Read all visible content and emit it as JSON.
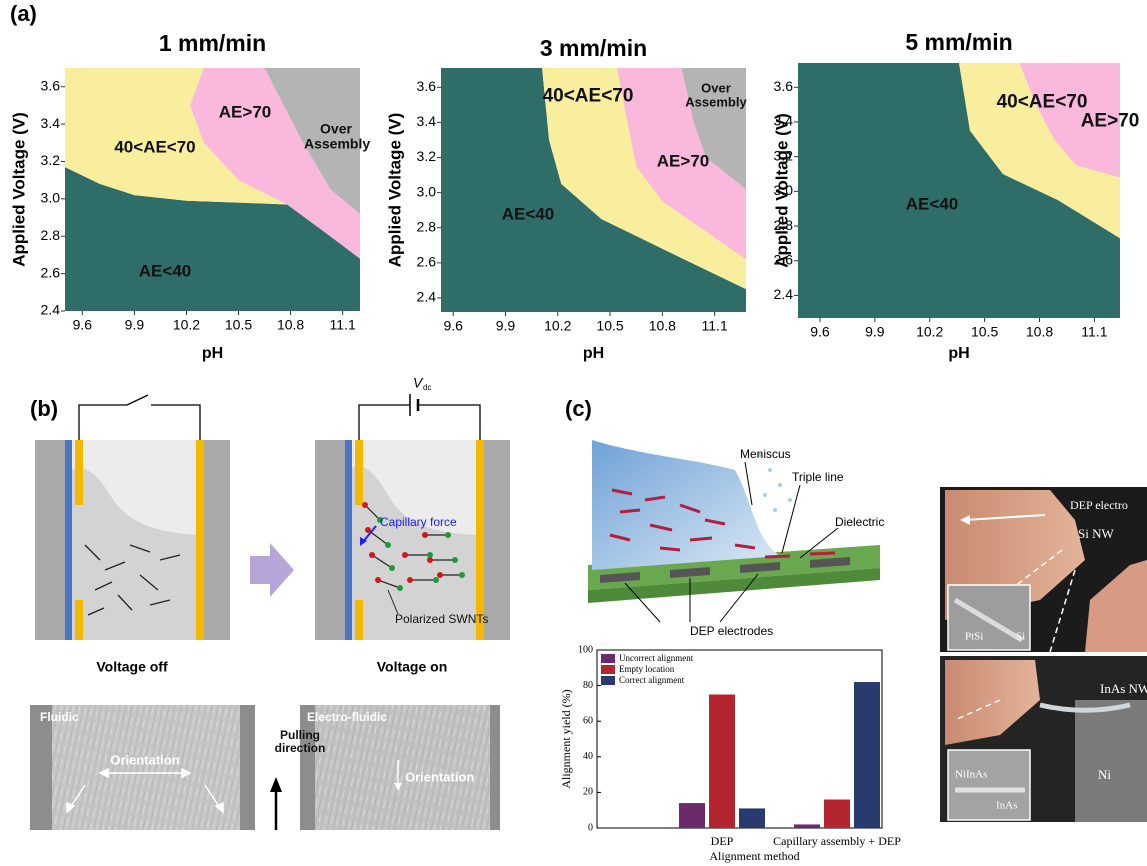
{
  "panel_labels": [
    "(a)",
    "(b)",
    "(c)"
  ],
  "chart_data": [
    {
      "type": "region",
      "title": "1 mm/min",
      "xlabel": "pH",
      "ylabel": "Applied Voltage (V)",
      "xlim": [
        9.5,
        11.2
      ],
      "ylim": [
        2.4,
        3.7
      ],
      "xticks": [
        9.6,
        9.9,
        10.2,
        10.5,
        10.8,
        11.1
      ],
      "yticks": [
        2.4,
        2.6,
        2.8,
        {
          "value": 3,
          "label": "3.0"
        },
        3.2,
        3.4,
        3.6
      ],
      "regions": [
        {
          "name": "AE<40",
          "color": "#2f6d69",
          "x": [
            9.5,
            9.5,
            9.7,
            9.9,
            10.2,
            10.5,
            10.78,
            11.0,
            11.2,
            11.2
          ],
          "y": [
            2.4,
            3.17,
            3.08,
            3.02,
            2.99,
            2.98,
            2.97,
            2.82,
            2.68,
            2.4
          ]
        },
        {
          "name": "40<AE<70",
          "color": "#f8ee9e",
          "x": [
            9.5,
            9.5,
            9.7,
            9.9,
            10.2,
            10.5,
            10.78,
            10.5,
            10.3,
            10.22,
            10.3
          ],
          "y": [
            3.7,
            3.17,
            3.08,
            3.02,
            2.99,
            2.98,
            2.97,
            3.1,
            3.3,
            3.5,
            3.7
          ]
        },
        {
          "name": "AE>70",
          "color": "#f9b8dc",
          "x": [
            10.78,
            10.5,
            10.3,
            10.22,
            10.3,
            10.65,
            10.86,
            11.03,
            11.2,
            11.2,
            11.0
          ],
          "y": [
            2.97,
            3.1,
            3.3,
            3.5,
            3.7,
            3.7,
            3.32,
            3.05,
            2.92,
            2.68,
            2.82
          ]
        },
        {
          "name": "Over Assembly",
          "color": "#b4b4b4",
          "x": [
            10.65,
            11.2,
            11.2,
            11.03,
            10.86
          ],
          "y": [
            3.7,
            3.7,
            2.92,
            3.05,
            3.32
          ]
        }
      ]
    },
    {
      "type": "region",
      "title": "3 mm/min",
      "xlabel": "pH",
      "ylabel": "Applied Voltage (V)",
      "xlim": [
        9.53,
        11.28
      ],
      "ylim": [
        2.32,
        3.71
      ],
      "xticks": [
        9.6,
        9.9,
        10.2,
        10.5,
        10.8,
        11.1
      ],
      "yticks": [
        2.4,
        2.6,
        2.8,
        {
          "value": 3,
          "label": "3.0"
        },
        3.2,
        3.4,
        3.6
      ],
      "regions": [
        {
          "name": "AE<40",
          "color": "#2f6d69",
          "x": [
            9.53,
            9.53,
            10.11,
            10.15,
            10.22,
            10.45,
            10.8,
            11.28,
            11.28
          ],
          "y": [
            2.32,
            3.71,
            3.71,
            3.3,
            3.05,
            2.85,
            2.68,
            2.45,
            2.32
          ]
        },
        {
          "name": "40<AE<70",
          "color": "#f8ee9e",
          "x": [
            10.11,
            10.15,
            10.22,
            10.45,
            10.8,
            11.28,
            11.28,
            10.8,
            10.65,
            10.6,
            10.54
          ],
          "y": [
            3.71,
            3.3,
            3.05,
            2.85,
            2.68,
            2.45,
            2.62,
            2.95,
            3.15,
            3.4,
            3.71
          ]
        },
        {
          "name": "AE>70",
          "color": "#f9b8dc",
          "x": [
            10.54,
            10.6,
            10.65,
            10.8,
            11.28,
            11.28,
            11.05,
            10.98,
            10.91
          ],
          "y": [
            3.71,
            3.4,
            3.15,
            2.95,
            2.62,
            3.02,
            3.2,
            3.4,
            3.71
          ]
        },
        {
          "name": "Over Assembly",
          "color": "#b4b4b4",
          "x": [
            10.91,
            11.28,
            11.28,
            11.05,
            10.98
          ],
          "y": [
            3.71,
            3.71,
            3.02,
            3.2,
            3.4
          ]
        }
      ]
    },
    {
      "type": "region",
      "title": "5 mm/min",
      "xlabel": "pH",
      "ylabel": "Applied Voltage (V)",
      "xlim": [
        9.48,
        11.24
      ],
      "ylim": [
        2.27,
        3.74
      ],
      "xticks": [
        9.6,
        9.9,
        10.2,
        10.5,
        10.8,
        11.1
      ],
      "yticks": [
        2.4,
        2.6,
        2.8,
        {
          "value": 3,
          "label": "3.0"
        },
        3.2,
        3.4,
        3.6
      ],
      "regions": [
        {
          "name": "AE<40",
          "color": "#2f6d69",
          "x": [
            9.48,
            9.48,
            10.36,
            10.42,
            10.6,
            10.9,
            11.24,
            11.24
          ],
          "y": [
            2.27,
            3.74,
            3.74,
            3.35,
            3.1,
            2.95,
            2.73,
            2.27
          ]
        },
        {
          "name": "40<AE<70",
          "color": "#f8ee9e",
          "x": [
            10.36,
            10.42,
            10.6,
            10.9,
            11.24,
            11.24,
            11.0,
            10.88,
            10.78,
            10.69
          ],
          "y": [
            3.74,
            3.35,
            3.1,
            2.95,
            2.73,
            3.08,
            3.15,
            3.3,
            3.5,
            3.74
          ]
        },
        {
          "name": "AE>70",
          "color": "#f9b8dc",
          "x": [
            10.69,
            10.78,
            10.88,
            11.0,
            11.24,
            11.24
          ],
          "y": [
            3.74,
            3.5,
            3.3,
            3.15,
            3.08,
            3.74
          ]
        }
      ]
    },
    {
      "type": "bar",
      "xlabel": "Alignment method",
      "ylabel": "Alignment yield (%)",
      "categories": [
        "DEP",
        "Capillary assembly + DEP"
      ],
      "series": [
        {
          "name": "Uncorrect alignment",
          "color": "#6a2a6c",
          "values": [
            14,
            2
          ]
        },
        {
          "name": "Empty location",
          "color": "#b52530",
          "values": [
            75,
            16
          ]
        },
        {
          "name": "Correct alignment",
          "color": "#283a6e",
          "values": [
            11,
            82
          ]
        }
      ],
      "ylim": [
        0,
        100
      ],
      "yticks": [
        0,
        20,
        40,
        60,
        80,
        100
      ],
      "legend": "upper left"
    }
  ],
  "panel_b": {
    "off_label": "Voltage off",
    "on_label": "Voltage on",
    "voltage_symbol": "V",
    "voltage_subscript": "dc",
    "capillary_force": "Capillary force",
    "polarized": "Polarized SWNTs",
    "micrographs": [
      {
        "title": "Fluidic",
        "annotation": "Orientation"
      },
      {
        "title": "Electro-fluidic",
        "annotation": "Orientation"
      }
    ],
    "pulling_direction": "Pulling direction"
  },
  "panel_c": {
    "schematic_labels": [
      "Meniscus",
      "Triple line",
      "Dielectric",
      "DEP electrodes"
    ],
    "sem_top": {
      "labels": [
        "DEP electro",
        "Si NW"
      ],
      "inset": [
        "PtSi",
        "Si"
      ]
    },
    "sem_bottom": {
      "labels": [
        "InAs NW",
        "Ni"
      ],
      "inset": [
        "NiInAs",
        "InAs"
      ]
    }
  }
}
